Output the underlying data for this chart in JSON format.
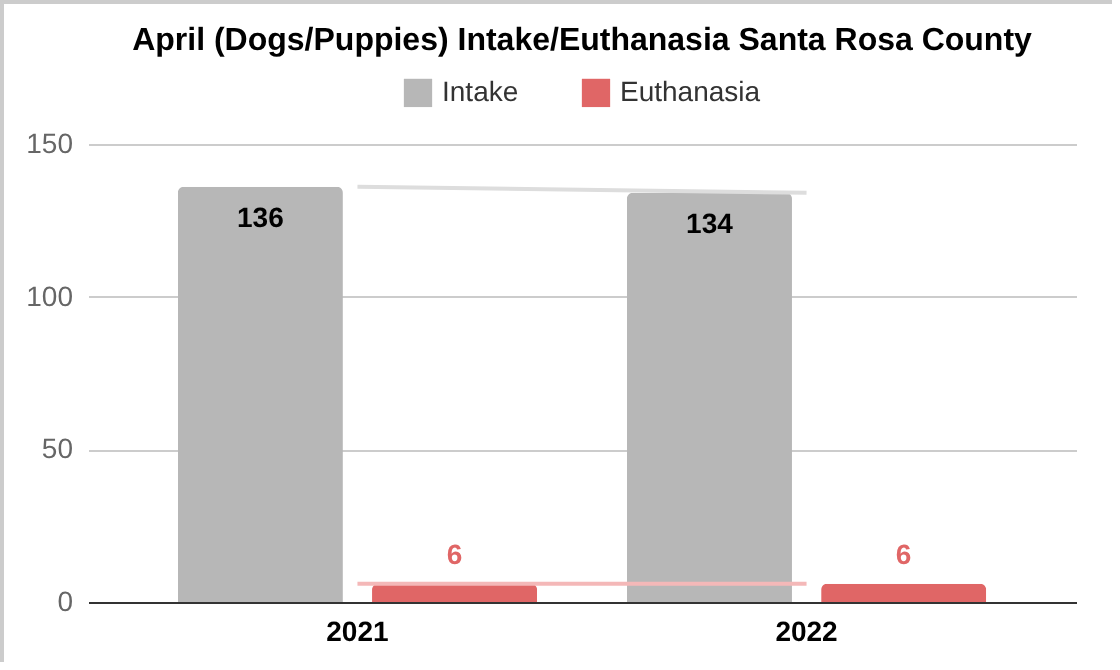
{
  "chart_data": {
    "type": "bar",
    "title": "April (Dogs/Puppies) Intake/Euthanasia Santa Rosa County",
    "categories": [
      "2021",
      "2022"
    ],
    "series": [
      {
        "name": "Intake",
        "color": "#b7b7b7",
        "values": [
          136,
          134
        ],
        "value_labels": [
          "136",
          "134"
        ]
      },
      {
        "name": "Euthanasia",
        "color": "#e06666",
        "values": [
          6,
          6
        ],
        "value_labels": [
          "6",
          "6"
        ]
      },
      {
        "type": "line",
        "color": "#dddddd",
        "values": [
          136,
          134
        ]
      },
      {
        "type": "line",
        "color": "#f4b8b8",
        "values": [
          6,
          6
        ]
      }
    ],
    "ylim": [
      0,
      150
    ],
    "yticks": [
      0,
      50,
      100,
      150
    ],
    "grid": "y",
    "legend": "top"
  }
}
